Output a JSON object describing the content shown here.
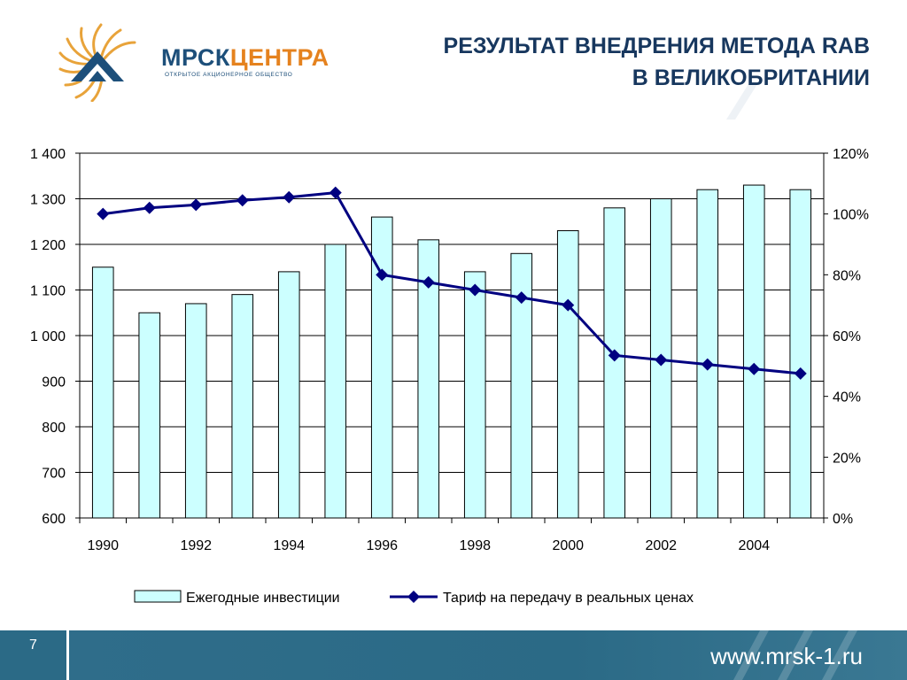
{
  "header": {
    "logo_text": "МРСК",
    "logo_accent": "ЦЕНТРА",
    "logo_subtitle": "ОТКРЫТОЕ АКЦИОНЕРНОЕ ОБЩЕСТВО",
    "title_line1": "РЕЗУЛЬТАТ ВНЕДРЕНИЯ МЕТОДА RAB",
    "title_line2": "В ВЕЛИКОБРИТАНИИ"
  },
  "colors": {
    "title": "#17375e",
    "bar_fill": "#ccffff",
    "line": "#000080",
    "footer": "#2b6a86",
    "logo_blue": "#1d4f7a",
    "logo_orange": "#e5821e"
  },
  "chart_data": {
    "type": "bar",
    "x": [
      1990,
      1991,
      1992,
      1993,
      1994,
      1995,
      1996,
      1997,
      1998,
      1999,
      2000,
      2001,
      2002,
      2003,
      2004,
      2005
    ],
    "x_tick_labels": [
      "1990",
      "1992",
      "1994",
      "1996",
      "1998",
      "2000",
      "2002",
      "2004"
    ],
    "ylim": [
      600,
      1400
    ],
    "y_tick_labels": [
      "600",
      "700",
      "800",
      "900",
      "1 000",
      "1 100",
      "1 200",
      "1 300",
      "1 400"
    ],
    "y2lim": [
      0,
      1.2
    ],
    "y2_tick_labels": [
      "0%",
      "20%",
      "40%",
      "60%",
      "80%",
      "100%",
      "120%"
    ],
    "grid": true,
    "legend_position": "bottom",
    "series": [
      {
        "name": "Ежегодные инвестиции",
        "type": "bar",
        "axis": "left",
        "values": [
          1150,
          1050,
          1070,
          1090,
          1140,
          1200,
          1260,
          1210,
          1140,
          1180,
          1230,
          1280,
          1300,
          1320,
          1330,
          1320
        ]
      },
      {
        "name": "Тариф на передачу в реальных ценах",
        "type": "line",
        "axis": "right",
        "values": [
          1.0,
          1.02,
          1.03,
          1.045,
          1.055,
          1.07,
          0.8,
          0.775,
          0.75,
          0.725,
          0.7,
          0.535,
          0.52,
          0.505,
          0.49,
          0.475
        ]
      }
    ]
  },
  "footer": {
    "page_number": "7",
    "url": "www.mrsk-1.ru"
  }
}
